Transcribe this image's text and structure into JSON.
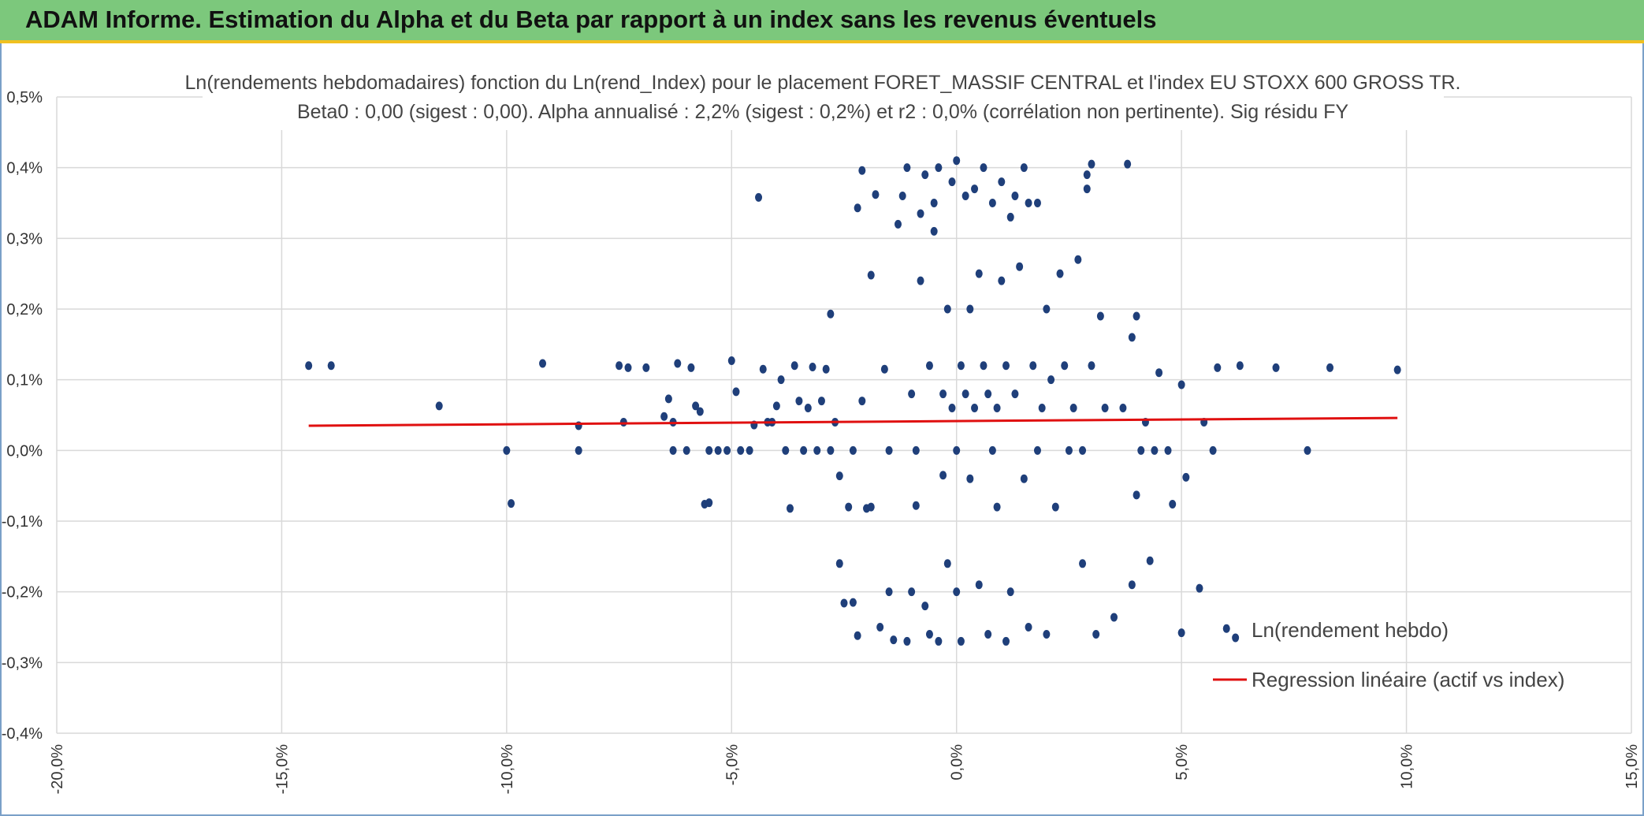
{
  "header": {
    "title": "ADAM Informe. Estimation du Alpha et du Beta par rapport à un index sans les revenus éventuels"
  },
  "colors": {
    "banner": "#7cc87c",
    "banner_accent": "#f0c020",
    "points": "#1f3f7a",
    "regression": "#e01010",
    "grid": "#d9d9d9"
  },
  "chart_data": {
    "type": "scatter",
    "title": "Ln(rendements hebdomadaires) fonction du Ln(rend_Index) pour le placement FORET_MASSIF CENTRAL et l'index EU STOXX 600 GROSS TR.",
    "subtitle": "Beta0 : 0,00 (sigest : 0,00). Alpha annualisé : 2,2% (sigest : 0,2%) et r2 : 0,0% (corrélation non pertinente). Sig résidu FY",
    "xlabel": "",
    "ylabel": "",
    "xlim": [
      -20,
      15
    ],
    "ylim": [
      -0.4,
      0.5
    ],
    "x_ticks": [
      "-20,0%",
      "-15,0%",
      "-10,0%",
      "-5,0%",
      "0,0%",
      "5,0%",
      "10,0%",
      "15,0%"
    ],
    "x_tick_values": [
      -20,
      -15,
      -10,
      -5,
      0,
      5,
      10,
      15
    ],
    "y_ticks": [
      "0,5%",
      "0,4%",
      "0,3%",
      "0,2%",
      "0,1%",
      "0,0%",
      "-0,1%",
      "-0,2%",
      "-0,3%",
      "-0,4%"
    ],
    "y_tick_values": [
      0.5,
      0.4,
      0.3,
      0.2,
      0.1,
      0.0,
      -0.1,
      -0.2,
      -0.3,
      -0.4
    ],
    "grid": true,
    "legend_position": "bottom-right",
    "series": [
      {
        "name": "Ln(rendement hebdo)",
        "kind": "scatter",
        "points": [
          [
            -14.4,
            0.12
          ],
          [
            -13.9,
            0.12
          ],
          [
            -11.5,
            0.063
          ],
          [
            -10.0,
            0.0
          ],
          [
            -9.9,
            -0.075
          ],
          [
            -9.2,
            0.123
          ],
          [
            -8.4,
            0.035
          ],
          [
            -8.4,
            0.0
          ],
          [
            -7.5,
            0.12
          ],
          [
            -7.4,
            0.04
          ],
          [
            -7.3,
            0.117
          ],
          [
            -6.9,
            0.117
          ],
          [
            -6.5,
            0.048
          ],
          [
            -6.4,
            0.073
          ],
          [
            -6.3,
            0.04
          ],
          [
            -6.3,
            0.0
          ],
          [
            -6.2,
            0.123
          ],
          [
            -6.0,
            0.0
          ],
          [
            -5.9,
            0.117
          ],
          [
            -5.8,
            0.063
          ],
          [
            -5.7,
            0.055
          ],
          [
            -5.6,
            -0.076
          ],
          [
            -5.5,
            -0.074
          ],
          [
            -5.5,
            0.0
          ],
          [
            -5.3,
            0.0
          ],
          [
            -5.1,
            0.0
          ],
          [
            -5.0,
            0.127
          ],
          [
            -4.9,
            0.083
          ],
          [
            -4.8,
            0.0
          ],
          [
            -4.6,
            0.0
          ],
          [
            -4.5,
            0.036
          ],
          [
            -4.4,
            0.358
          ],
          [
            -4.3,
            0.115
          ],
          [
            -4.2,
            0.04
          ],
          [
            -4.1,
            0.04
          ],
          [
            -4.0,
            0.063
          ],
          [
            -3.9,
            0.1
          ],
          [
            -3.8,
            0.0
          ],
          [
            -3.7,
            -0.082
          ],
          [
            -3.6,
            0.12
          ],
          [
            -3.5,
            0.07
          ],
          [
            -3.4,
            0.0
          ],
          [
            -3.3,
            0.06
          ],
          [
            -3.2,
            0.118
          ],
          [
            -3.1,
            0.0
          ],
          [
            -3.0,
            0.07
          ],
          [
            -2.9,
            0.115
          ],
          [
            -2.8,
            0.193
          ],
          [
            -2.8,
            0.0
          ],
          [
            -2.7,
            0.04
          ],
          [
            -2.6,
            -0.036
          ],
          [
            -2.6,
            -0.16
          ],
          [
            -2.5,
            -0.216
          ],
          [
            -2.4,
            -0.08
          ],
          [
            -2.3,
            0.0
          ],
          [
            -2.3,
            -0.215
          ],
          [
            -2.2,
            -0.262
          ],
          [
            -2.2,
            0.343
          ],
          [
            -2.1,
            0.396
          ],
          [
            -2.1,
            0.07
          ],
          [
            -2.0,
            -0.082
          ],
          [
            -1.9,
            -0.08
          ],
          [
            -1.9,
            0.248
          ],
          [
            -1.8,
            0.362
          ],
          [
            -1.7,
            -0.25
          ],
          [
            -1.6,
            0.115
          ],
          [
            -1.5,
            -0.2
          ],
          [
            -1.5,
            0.0
          ],
          [
            -1.4,
            -0.268
          ],
          [
            -1.3,
            0.32
          ],
          [
            -1.2,
            0.36
          ],
          [
            -1.1,
            -0.27
          ],
          [
            -1.1,
            0.4
          ],
          [
            -1.0,
            0.08
          ],
          [
            -1.0,
            -0.2
          ],
          [
            -0.9,
            -0.078
          ],
          [
            -0.9,
            0.0
          ],
          [
            -0.8,
            0.335
          ],
          [
            -0.8,
            0.24
          ],
          [
            -0.7,
            -0.22
          ],
          [
            -0.7,
            0.39
          ],
          [
            -0.6,
            0.12
          ],
          [
            -0.6,
            -0.26
          ],
          [
            -0.5,
            0.31
          ],
          [
            -0.5,
            0.35
          ],
          [
            -0.4,
            0.4
          ],
          [
            -0.4,
            -0.27
          ],
          [
            -0.3,
            0.08
          ],
          [
            -0.3,
            -0.035
          ],
          [
            -0.2,
            0.2
          ],
          [
            -0.2,
            -0.16
          ],
          [
            -0.1,
            0.38
          ],
          [
            -0.1,
            0.06
          ],
          [
            0.0,
            0.0
          ],
          [
            0.0,
            0.41
          ],
          [
            0.0,
            -0.2
          ],
          [
            0.1,
            0.12
          ],
          [
            0.1,
            -0.27
          ],
          [
            0.2,
            0.36
          ],
          [
            0.2,
            0.08
          ],
          [
            0.3,
            0.2
          ],
          [
            0.3,
            -0.04
          ],
          [
            0.4,
            0.37
          ],
          [
            0.4,
            0.06
          ],
          [
            0.5,
            0.25
          ],
          [
            0.5,
            -0.19
          ],
          [
            0.6,
            0.4
          ],
          [
            0.6,
            0.12
          ],
          [
            0.7,
            -0.26
          ],
          [
            0.7,
            0.08
          ],
          [
            0.8,
            0.35
          ],
          [
            0.8,
            0.0
          ],
          [
            0.9,
            -0.08
          ],
          [
            0.9,
            0.06
          ],
          [
            1.0,
            0.38
          ],
          [
            1.0,
            0.24
          ],
          [
            1.1,
            -0.27
          ],
          [
            1.1,
            0.12
          ],
          [
            1.2,
            0.33
          ],
          [
            1.2,
            -0.2
          ],
          [
            1.3,
            0.36
          ],
          [
            1.3,
            0.08
          ],
          [
            1.4,
            0.26
          ],
          [
            1.5,
            -0.04
          ],
          [
            1.5,
            0.4
          ],
          [
            1.6,
            0.35
          ],
          [
            1.6,
            -0.25
          ],
          [
            1.7,
            0.12
          ],
          [
            1.8,
            0.0
          ],
          [
            1.8,
            0.35
          ],
          [
            1.9,
            0.06
          ],
          [
            2.0,
            -0.26
          ],
          [
            2.0,
            0.2
          ],
          [
            2.1,
            0.1
          ],
          [
            2.2,
            -0.08
          ],
          [
            2.3,
            0.25
          ],
          [
            2.4,
            0.12
          ],
          [
            2.5,
            0.0
          ],
          [
            2.6,
            0.06
          ],
          [
            2.7,
            0.27
          ],
          [
            2.8,
            0.0
          ],
          [
            2.8,
            -0.16
          ],
          [
            2.9,
            0.39
          ],
          [
            2.9,
            0.37
          ],
          [
            3.0,
            0.405
          ],
          [
            3.0,
            0.12
          ],
          [
            3.1,
            -0.26
          ],
          [
            3.2,
            0.19
          ],
          [
            3.3,
            0.06
          ],
          [
            3.5,
            -0.236
          ],
          [
            3.7,
            0.06
          ],
          [
            3.8,
            0.405
          ],
          [
            3.9,
            0.16
          ],
          [
            3.9,
            -0.19
          ],
          [
            4.0,
            0.19
          ],
          [
            4.0,
            -0.063
          ],
          [
            4.1,
            0.0
          ],
          [
            4.2,
            0.04
          ],
          [
            4.3,
            -0.156
          ],
          [
            4.4,
            0.0
          ],
          [
            4.5,
            0.11
          ],
          [
            4.7,
            0.0
          ],
          [
            4.8,
            -0.076
          ],
          [
            5.0,
            -0.258
          ],
          [
            5.0,
            0.093
          ],
          [
            5.1,
            -0.038
          ],
          [
            5.4,
            -0.195
          ],
          [
            5.5,
            0.04
          ],
          [
            5.7,
            0.0
          ],
          [
            5.8,
            0.117
          ],
          [
            6.0,
            -0.252
          ],
          [
            6.2,
            -0.265
          ],
          [
            6.3,
            0.12
          ],
          [
            7.1,
            0.117
          ],
          [
            7.8,
            0.0
          ],
          [
            8.3,
            0.117
          ],
          [
            9.8,
            0.114
          ]
        ]
      },
      {
        "name": "Regression linéaire (actif vs index)",
        "kind": "line",
        "x": [
          -14.4,
          9.8
        ],
        "y": [
          0.035,
          0.046
        ]
      }
    ]
  }
}
